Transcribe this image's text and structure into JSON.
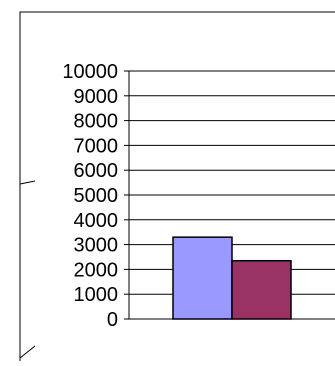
{
  "chart_data": {
    "type": "bar",
    "title": "",
    "xlabel": "",
    "ylabel": "",
    "categories": [
      ""
    ],
    "series": [
      {
        "values": [
          3300
        ],
        "color": "#9999ff"
      },
      {
        "values": [
          2350
        ],
        "color": "#993366"
      }
    ],
    "ylim": [
      0,
      10000
    ],
    "yticks": [
      0,
      1000,
      2000,
      3000,
      4000,
      5000,
      6000,
      7000,
      8000,
      9000,
      10000
    ],
    "ytick_labels": [
      "0",
      "1000",
      "2000",
      "3000",
      "4000",
      "5000",
      "6000",
      "7000",
      "8000",
      "9000",
      "10000"
    ],
    "grid": true,
    "legend": "none"
  }
}
